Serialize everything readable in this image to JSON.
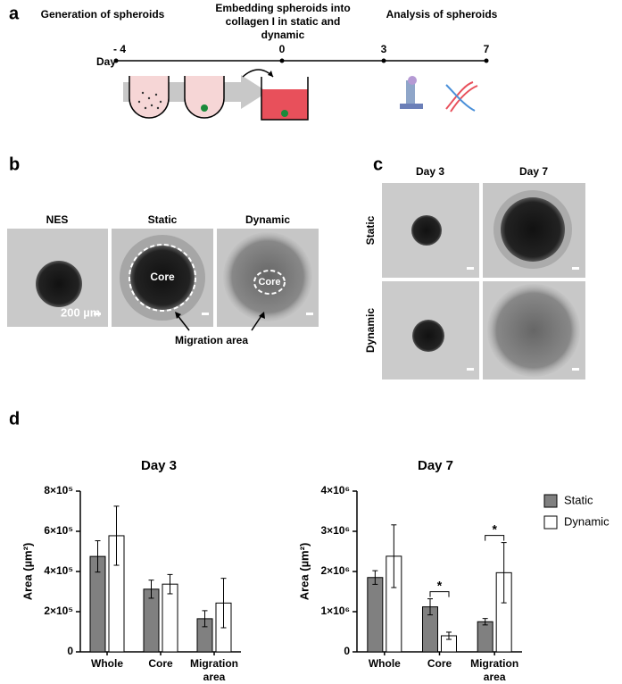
{
  "panels": {
    "a": "a",
    "b": "b",
    "c": "c",
    "d": "d"
  },
  "timeline": {
    "steps": [
      "Generation of spheroids",
      "Embedding spheroids into collagen I in static and dynamic",
      "Analysis of spheroids"
    ],
    "axis_label": "Day",
    "ticks": [
      "- 4",
      "0",
      "3",
      "7"
    ]
  },
  "panel_b": {
    "columns": [
      "NES",
      "Static",
      "Dynamic"
    ],
    "core_labels": [
      "Core",
      "Core"
    ],
    "scale_bar": "200 µm",
    "arrow_label": "Migration area"
  },
  "panel_c": {
    "columns": [
      "Day 3",
      "Day 7"
    ],
    "rows": [
      "Static",
      "Dynamic"
    ]
  },
  "chart_data": [
    {
      "type": "bar",
      "title": "Day 3",
      "y_label": "Area (µm²)",
      "categories": [
        "Whole",
        "Core",
        "Migration area"
      ],
      "series": [
        {
          "color": "#808080",
          "values": [
            475000,
            312000,
            165000
          ],
          "errors": [
            78000,
            45000,
            40000
          ]
        },
        {
          "color": "#ffffff",
          "values": [
            578000,
            337000,
            243000
          ],
          "errors": [
            147000,
            48000,
            123000
          ]
        }
      ],
      "ylim": [
        0,
        800000
      ],
      "yticks": [
        0,
        {
          "value": 200000,
          "label": "2×10⁵"
        },
        {
          "value": 400000,
          "label": "4×10⁵"
        },
        {
          "value": 600000,
          "label": "6×10⁵"
        },
        {
          "value": 800000,
          "label": "8×10⁵"
        }
      ]
    },
    {
      "type": "bar",
      "title": "Day 7",
      "y_label": "Area (µm²)",
      "categories": [
        "Whole",
        "Core",
        "Migration area"
      ],
      "series": [
        {
          "name": "Static",
          "color": "#808080",
          "values": [
            1850000,
            1120000,
            750000
          ],
          "errors": [
            170000,
            200000,
            80000
          ]
        },
        {
          "name": "Dynamic",
          "color": "#ffffff",
          "values": [
            2380000,
            400000,
            1970000
          ],
          "errors": [
            780000,
            90000,
            750000
          ]
        }
      ],
      "significance": [
        null,
        "*",
        "*"
      ],
      "ylim": [
        0,
        4000000
      ],
      "yticks": [
        0,
        {
          "value": 1000000,
          "label": "1×10⁶"
        },
        {
          "value": 2000000,
          "label": "2×10⁶"
        },
        {
          "value": 3000000,
          "label": "3×10⁶"
        },
        {
          "value": 4000000,
          "label": "4×10⁶"
        }
      ],
      "legend": "right"
    }
  ]
}
